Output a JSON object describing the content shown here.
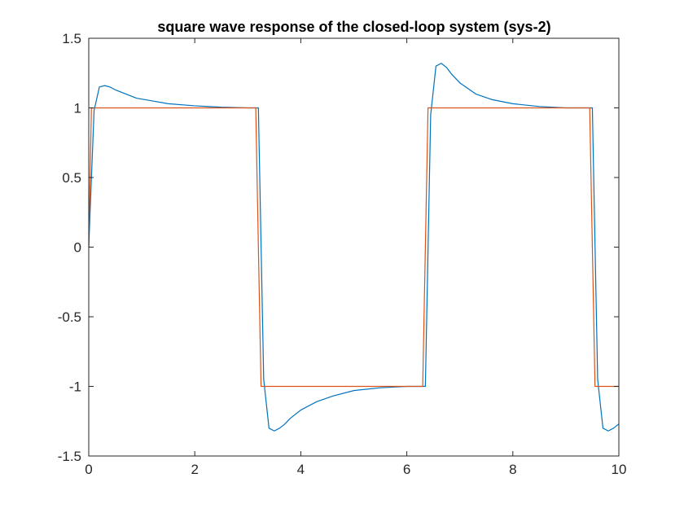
{
  "chart_data": {
    "type": "line",
    "title": "square wave response of the closed-loop system (sys-2)",
    "xlabel": "",
    "ylabel": "",
    "xlim": [
      0,
      10
    ],
    "ylim": [
      -1.5,
      1.5
    ],
    "xticks": [
      0,
      2,
      4,
      6,
      8,
      10
    ],
    "yticks": [
      -1.5,
      -1,
      -0.5,
      0,
      0.5,
      1,
      1.5
    ],
    "xtick_labels": [
      "0",
      "2",
      "4",
      "6",
      "8",
      "10"
    ],
    "ytick_labels": [
      "-1.5",
      "-1",
      "-0.5",
      "0",
      "0.5",
      "1",
      "1.5"
    ],
    "grid": false,
    "series": [
      {
        "color": "#0072bd",
        "x": [
          0,
          0.1,
          0.2,
          0.3,
          0.4,
          0.5,
          0.7,
          0.9,
          1.2,
          1.5,
          2.0,
          2.5,
          3.0,
          3.2,
          3.3,
          3.4,
          3.5,
          3.6,
          3.7,
          3.8,
          4.0,
          4.3,
          4.6,
          5.0,
          5.5,
          6.0,
          6.35,
          6.45,
          6.55,
          6.65,
          6.75,
          6.85,
          7.0,
          7.3,
          7.6,
          8.0,
          8.5,
          9.0,
          9.5,
          9.6,
          9.7,
          9.8,
          9.9,
          10.0
        ],
        "y": [
          0,
          0.98,
          1.15,
          1.16,
          1.15,
          1.13,
          1.1,
          1.07,
          1.05,
          1.03,
          1.015,
          1.005,
          1.0,
          1.0,
          -0.95,
          -1.3,
          -1.32,
          -1.3,
          -1.27,
          -1.23,
          -1.17,
          -1.11,
          -1.07,
          -1.03,
          -1.01,
          -1.0,
          -1.0,
          0.95,
          1.3,
          1.32,
          1.29,
          1.24,
          1.18,
          1.1,
          1.06,
          1.03,
          1.01,
          1.0,
          1.0,
          -0.95,
          -1.3,
          -1.32,
          -1.3,
          -1.27
        ]
      },
      {
        "color": "#d95319",
        "x": [
          0,
          0.05,
          3.15,
          3.25,
          6.3,
          6.4,
          9.45,
          9.55,
          10.0
        ],
        "y": [
          0,
          1,
          1,
          -1,
          -1,
          1,
          1,
          -1,
          -1
        ]
      }
    ]
  }
}
